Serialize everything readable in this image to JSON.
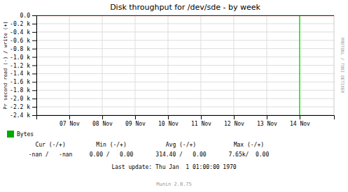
{
  "chart_data": {
    "type": "line",
    "title": "Disk throughput for /dev/sde - by week",
    "y_label": "Pr second read (-) / write (+)",
    "grid": true,
    "legend": "bottom-left",
    "xlim": [
      1478390400,
      1479171888
    ],
    "xticks": [
      {
        "value": 1478476800,
        "label": "07 Nov"
      },
      {
        "value": 1478563200,
        "label": "08 Nov"
      },
      {
        "value": 1478649600,
        "label": "09 Nov"
      },
      {
        "value": 1478736000,
        "label": "10 Nov"
      },
      {
        "value": 1478822400,
        "label": "11 Nov"
      },
      {
        "value": 1478908800,
        "label": "12 Nov"
      },
      {
        "value": 1478995200,
        "label": "13 Nov"
      },
      {
        "value": 1479081600,
        "label": "14 Nov"
      }
    ],
    "ylim": [
      -2400,
      0
    ],
    "yticks": [
      {
        "value": 0,
        "label": "0.0"
      },
      {
        "value": -200,
        "label": "-0.2 k"
      },
      {
        "value": -400,
        "label": "-0.4 k"
      },
      {
        "value": -600,
        "label": "-0.6 k"
      },
      {
        "value": -800,
        "label": "-0.8 k"
      },
      {
        "value": -1000,
        "label": "-1.0 k"
      },
      {
        "value": -1200,
        "label": "-1.2 k"
      },
      {
        "value": -1400,
        "label": "-1.4 k"
      },
      {
        "value": -1600,
        "label": "-1.6 k"
      },
      {
        "value": -1800,
        "label": "-1.8 k"
      },
      {
        "value": -2000,
        "label": "-2.0 k"
      },
      {
        "value": -2200,
        "label": "-2.2 k"
      },
      {
        "value": -2400,
        "label": "-2.4 k"
      }
    ],
    "series": [
      {
        "name": "Bytes",
        "color": "#00aa00"
      }
    ],
    "vlines": [
      {
        "x": 1479081600,
        "color": "#00ee00"
      }
    ],
    "hlines": [
      {
        "y": 0,
        "color": "#880000"
      }
    ],
    "watermark": "RRDTOOL / TOBI OETIKER",
    "footer": {
      "headers": [
        "Cur (-/+)",
        "Min (-/+)",
        "Avg (-/+)",
        "Max (-/+)"
      ],
      "values": [
        "-nan /   -nan",
        "0.00 /   0.00",
        "314.40 /   0.00",
        "7.65k/  0.00"
      ],
      "last_update": "Last update: Thu Jan  1 01:00:00 1970",
      "version": "Munin 2.0.75"
    }
  }
}
